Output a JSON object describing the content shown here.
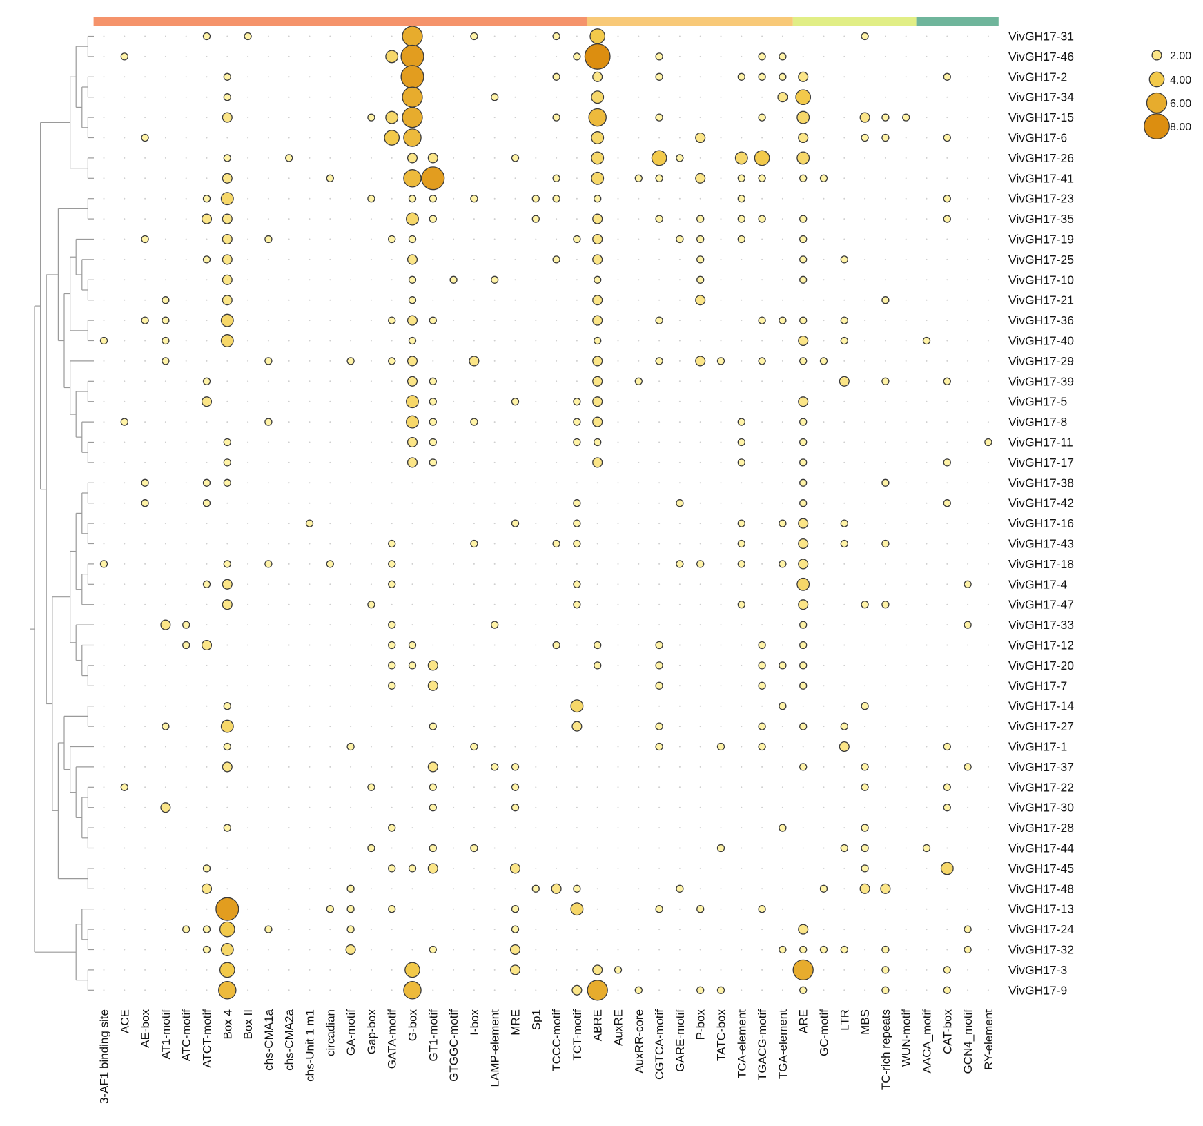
{
  "chart_data": {
    "type": "bubble-heatmap",
    "title": "",
    "xlabel": "",
    "ylabel": "",
    "columns": [
      "3-AF1 binding site",
      "ACE",
      "AE-box",
      "AT1-motif",
      "ATC-motif",
      "ATCT-motif",
      "Box 4",
      "Box II",
      "chs-CMA1a",
      "chs-CMA2a",
      "chs-Unit 1 m1",
      "circadian",
      "GA-motif",
      "Gap-box",
      "GATA-motif",
      "G-box",
      "GT1-motif",
      "GTGGC-motif",
      "I-box",
      "LAMP-element",
      "MRE",
      "Sp1",
      "TCCC-motif",
      "TCT-motif",
      "ABRE",
      "AuxRE",
      "AuxRR-core",
      "CGTCA-motif",
      "GARE-motif",
      "P-box",
      "TATC-box",
      "TCA-element",
      "TGACG-motif",
      "TGA-element",
      "ARE",
      "GC-motif",
      "LTR",
      "MBS",
      "TC-rich repeats",
      "WUN-motif",
      "AACA_motif",
      "CAT-box",
      "GCN4_motif",
      "RY-element"
    ],
    "column_groups": [
      {
        "start": 0,
        "end": 23,
        "color": "#F5936B"
      },
      {
        "start": 24,
        "end": 33,
        "color": "#F8C978"
      },
      {
        "start": 34,
        "end": 39,
        "color": "#E1EE86"
      },
      {
        "start": 40,
        "end": 43,
        "color": "#6FB59B"
      }
    ],
    "rows": [
      "VivGH17-31",
      "VivGH17-46",
      "VivGH17-2",
      "VivGH17-34",
      "VivGH17-15",
      "VivGH17-6",
      "VivGH17-26",
      "VivGH17-41",
      "VivGH17-23",
      "VivGH17-35",
      "VivGH17-19",
      "VivGH17-25",
      "VivGH17-10",
      "VivGH17-21",
      "VivGH17-36",
      "VivGH17-40",
      "VivGH17-29",
      "VivGH17-39",
      "VivGH17-5",
      "VivGH17-8",
      "VivGH17-11",
      "VivGH17-17",
      "VivGH17-38",
      "VivGH17-42",
      "VivGH17-16",
      "VivGH17-43",
      "VivGH17-18",
      "VivGH17-4",
      "VivGH17-47",
      "VivGH17-33",
      "VivGH17-12",
      "VivGH17-20",
      "VivGH17-7",
      "VivGH17-14",
      "VivGH17-27",
      "VivGH17-1",
      "VivGH17-37",
      "VivGH17-22",
      "VivGH17-30",
      "VivGH17-28",
      "VivGH17-44",
      "VivGH17-45",
      "VivGH17-48",
      "VivGH17-13",
      "VivGH17-24",
      "VivGH17-32",
      "VivGH17-3",
      "VivGH17-9"
    ],
    "counts": {
      "VivGH17-31": {
        "5": 1,
        "7": 1,
        "15": 6,
        "18": 1,
        "22": 1,
        "24": 4,
        "37": 1
      },
      "VivGH17-46": {
        "1": 1,
        "14": 3,
        "15": 7,
        "23": 1,
        "24": 8,
        "27": 1,
        "32": 1,
        "33": 1
      },
      "VivGH17-2": {
        "6": 1,
        "15": 7,
        "22": 1,
        "24": 2,
        "27": 1,
        "31": 1,
        "32": 1,
        "33": 1,
        "34": 2,
        "41": 1
      },
      "VivGH17-34": {
        "6": 1,
        "15": 6,
        "19": 1,
        "24": 3,
        "33": 2,
        "34": 4
      },
      "VivGH17-15": {
        "6": 2,
        "13": 1,
        "14": 3,
        "15": 6,
        "22": 1,
        "24": 5,
        "27": 1,
        "32": 1,
        "34": 3,
        "37": 2,
        "38": 1,
        "39": 1
      },
      "VivGH17-6": {
        "2": 1,
        "14": 4,
        "15": 5,
        "24": 3,
        "29": 2,
        "34": 2,
        "37": 1,
        "38": 1,
        "41": 1
      },
      "VivGH17-26": {
        "6": 1,
        "9": 1,
        "15": 2,
        "16": 2,
        "20": 1,
        "24": 3,
        "27": 4,
        "28": 1,
        "31": 3,
        "32": 4,
        "34": 3
      },
      "VivGH17-41": {
        "6": 2,
        "11": 1,
        "15": 5,
        "16": 7,
        "22": 1,
        "24": 3,
        "26": 1,
        "27": 1,
        "29": 2,
        "31": 1,
        "32": 1,
        "34": 1,
        "35": 1
      },
      "VivGH17-23": {
        "5": 1,
        "6": 3,
        "13": 1,
        "15": 1,
        "16": 1,
        "18": 1,
        "21": 1,
        "22": 1,
        "24": 1,
        "31": 1,
        "41": 1
      },
      "VivGH17-35": {
        "5": 2,
        "6": 2,
        "15": 3,
        "16": 1,
        "21": 1,
        "24": 2,
        "27": 1,
        "29": 1,
        "31": 1,
        "32": 1,
        "34": 1,
        "41": 1
      },
      "VivGH17-19": {
        "2": 1,
        "6": 2,
        "8": 1,
        "14": 1,
        "15": 1,
        "23": 1,
        "24": 2,
        "28": 1,
        "29": 1,
        "31": 1,
        "34": 1
      },
      "VivGH17-25": {
        "5": 1,
        "6": 2,
        "15": 2,
        "22": 1,
        "24": 2,
        "29": 1,
        "34": 1,
        "36": 1
      },
      "VivGH17-10": {
        "6": 2,
        "15": 1,
        "17": 1,
        "19": 1,
        "24": 1,
        "29": 1,
        "34": 1
      },
      "VivGH17-21": {
        "3": 1,
        "6": 2,
        "15": 1,
        "24": 2,
        "29": 2,
        "38": 1
      },
      "VivGH17-36": {
        "2": 1,
        "3": 1,
        "6": 3,
        "14": 1,
        "15": 2,
        "16": 1,
        "24": 2,
        "27": 1,
        "32": 1,
        "33": 1,
        "34": 1,
        "36": 1
      },
      "VivGH17-40": {
        "0": 1,
        "3": 1,
        "6": 3,
        "15": 1,
        "24": 1,
        "34": 2,
        "36": 1,
        "40": 1
      },
      "VivGH17-29": {
        "3": 1,
        "8": 1,
        "12": 1,
        "14": 1,
        "15": 2,
        "18": 2,
        "24": 2,
        "27": 1,
        "29": 2,
        "30": 1,
        "32": 1,
        "34": 1,
        "35": 1
      },
      "VivGH17-39": {
        "5": 1,
        "15": 2,
        "16": 1,
        "24": 2,
        "26": 1,
        "36": 2,
        "38": 1,
        "41": 1
      },
      "VivGH17-5": {
        "5": 2,
        "15": 3,
        "16": 1,
        "20": 1,
        "23": 1,
        "24": 2,
        "34": 2
      },
      "VivGH17-8": {
        "1": 1,
        "8": 1,
        "15": 3,
        "16": 1,
        "18": 1,
        "23": 1,
        "24": 2,
        "31": 1,
        "34": 1
      },
      "VivGH17-11": {
        "6": 1,
        "15": 2,
        "16": 1,
        "23": 1,
        "24": 1,
        "31": 1,
        "34": 1,
        "43": 1
      },
      "VivGH17-17": {
        "6": 1,
        "15": 2,
        "16": 1,
        "24": 2,
        "31": 1,
        "34": 1,
        "41": 1
      },
      "VivGH17-38": {
        "2": 1,
        "5": 1,
        "6": 1,
        "34": 1,
        "38": 1
      },
      "VivGH17-42": {
        "2": 1,
        "5": 1,
        "23": 1,
        "28": 1,
        "34": 1,
        "41": 1
      },
      "VivGH17-16": {
        "10": 1,
        "20": 1,
        "23": 1,
        "31": 1,
        "33": 1,
        "34": 2,
        "36": 1
      },
      "VivGH17-43": {
        "14": 1,
        "18": 1,
        "22": 1,
        "23": 1,
        "31": 1,
        "34": 2,
        "36": 1,
        "38": 1
      },
      "VivGH17-18": {
        "0": 1,
        "6": 1,
        "8": 1,
        "11": 1,
        "14": 1,
        "28": 1,
        "29": 1,
        "31": 1,
        "33": 1,
        "34": 2
      },
      "VivGH17-4": {
        "5": 1,
        "6": 2,
        "14": 1,
        "23": 1,
        "34": 3,
        "42": 1
      },
      "VivGH17-47": {
        "6": 2,
        "13": 1,
        "23": 1,
        "31": 1,
        "34": 2,
        "37": 1,
        "38": 1
      },
      "VivGH17-33": {
        "3": 2,
        "4": 1,
        "14": 1,
        "19": 1,
        "34": 1,
        "42": 1
      },
      "VivGH17-12": {
        "4": 1,
        "5": 2,
        "14": 1,
        "15": 1,
        "22": 1,
        "24": 1,
        "27": 1,
        "32": 1,
        "34": 1
      },
      "VivGH17-20": {
        "14": 1,
        "15": 1,
        "16": 2,
        "24": 1,
        "27": 1,
        "32": 1,
        "33": 1,
        "34": 1
      },
      "VivGH17-7": {
        "14": 1,
        "16": 2,
        "27": 1,
        "32": 1,
        "34": 1
      },
      "VivGH17-14": {
        "6": 1,
        "23": 3,
        "33": 1,
        "37": 1
      },
      "VivGH17-27": {
        "3": 1,
        "6": 3,
        "16": 1,
        "23": 2,
        "27": 1,
        "32": 1,
        "34": 1,
        "36": 1
      },
      "VivGH17-1": {
        "6": 1,
        "12": 1,
        "18": 1,
        "27": 1,
        "30": 1,
        "32": 1,
        "36": 2,
        "41": 1
      },
      "VivGH17-37": {
        "6": 2,
        "16": 2,
        "19": 1,
        "20": 1,
        "34": 1,
        "37": 1,
        "42": 1
      },
      "VivGH17-22": {
        "1": 1,
        "13": 1,
        "16": 1,
        "20": 1,
        "37": 1,
        "41": 1
      },
      "VivGH17-30": {
        "3": 2,
        "16": 1,
        "20": 1,
        "41": 1
      },
      "VivGH17-28": {
        "6": 1,
        "14": 1,
        "33": 1,
        "37": 1
      },
      "VivGH17-44": {
        "13": 1,
        "16": 1,
        "18": 1,
        "30": 1,
        "36": 1,
        "37": 1,
        "40": 1
      },
      "VivGH17-45": {
        "5": 1,
        "14": 1,
        "15": 1,
        "16": 2,
        "20": 2,
        "37": 1,
        "41": 3
      },
      "VivGH17-48": {
        "5": 2,
        "12": 1,
        "21": 1,
        "22": 2,
        "23": 1,
        "28": 1,
        "35": 1,
        "37": 2,
        "38": 2
      },
      "VivGH17-13": {
        "6": 7,
        "11": 1,
        "12": 1,
        "14": 1,
        "20": 1,
        "23": 3,
        "27": 1,
        "29": 1,
        "32": 1
      },
      "VivGH17-24": {
        "4": 1,
        "5": 1,
        "6": 4,
        "8": 1,
        "12": 1,
        "20": 1,
        "34": 2,
        "42": 1
      },
      "VivGH17-32": {
        "5": 1,
        "6": 3,
        "12": 2,
        "16": 1,
        "20": 2,
        "33": 1,
        "34": 1,
        "35": 1,
        "36": 1,
        "38": 1,
        "42": 1
      },
      "VivGH17-3": {
        "6": 4,
        "15": 4,
        "20": 2,
        "24": 2,
        "25": 1,
        "34": 6,
        "38": 1,
        "41": 1
      },
      "VivGH17-9": {
        "6": 5,
        "15": 5,
        "23": 2,
        "24": 6,
        "26": 1,
        "29": 1,
        "30": 1,
        "34": 1,
        "38": 1,
        "41": 1
      }
    },
    "legend": {
      "labels": [
        "2.00",
        "4.00",
        "6.00",
        "8.00"
      ],
      "values": [
        2,
        4,
        6,
        8
      ],
      "placement": "top-right"
    },
    "color_scale": {
      "low": "#FFF3A6",
      "mid": "#F2C94A",
      "high": "#DC8E10",
      "stroke": "#3a3a3a",
      "empty_dot": "#cfcfcf"
    },
    "dendrogram": "row clustering tree (left side)"
  }
}
